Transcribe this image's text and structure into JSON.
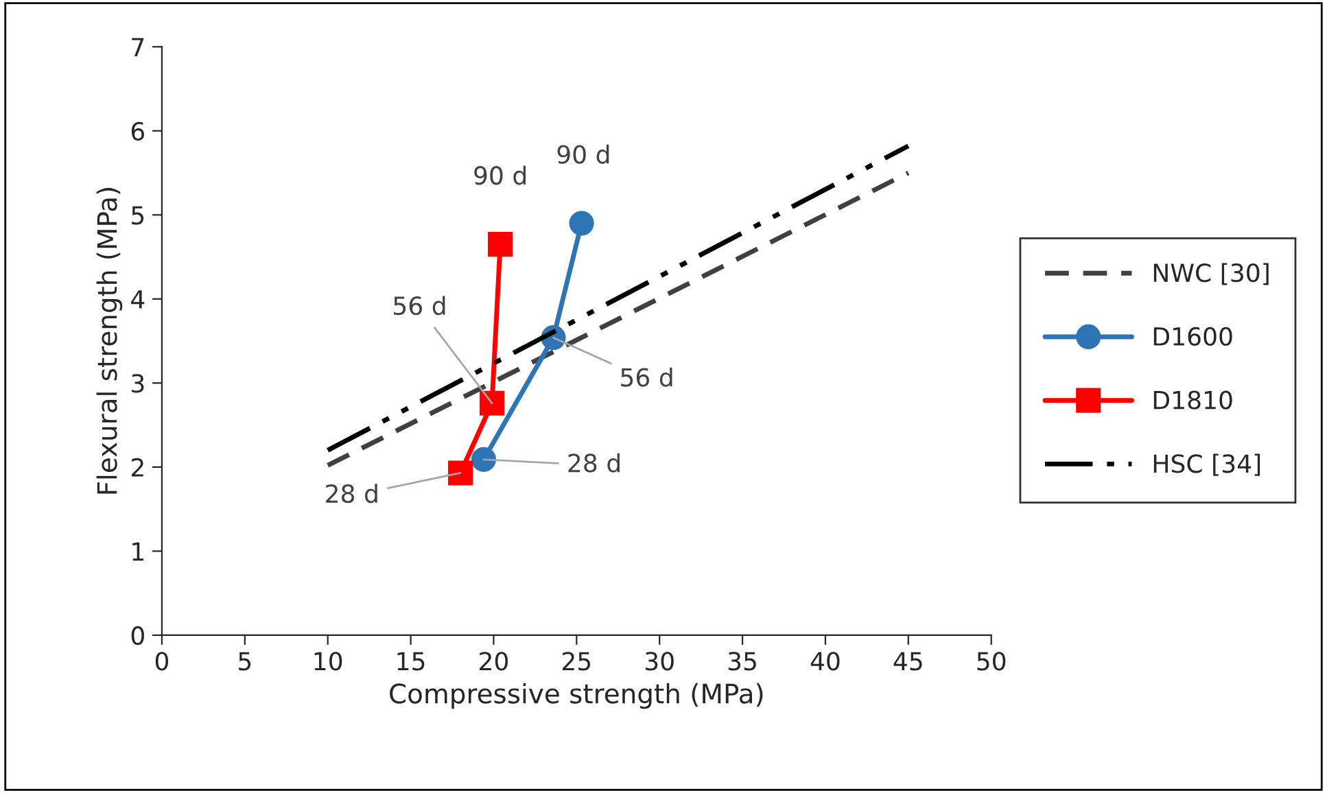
{
  "chart_data": {
    "type": "line",
    "xlabel": "Compressive strength (MPa)",
    "ylabel": "Flexural strength (MPa)",
    "xlim": [
      0,
      50
    ],
    "ylim": [
      0,
      7
    ],
    "xticks": [
      0,
      5,
      10,
      15,
      20,
      25,
      30,
      35,
      40,
      45,
      50
    ],
    "yticks": [
      0,
      1,
      2,
      3,
      4,
      5,
      6,
      7
    ],
    "grid": false,
    "legend": "right",
    "series": [
      {
        "name": "NWC [30]",
        "color": "#404040",
        "line_style": "dashed",
        "marker": "none",
        "x": [
          10,
          45
        ],
        "values": [
          2.02,
          5.5
        ]
      },
      {
        "name": "D1600",
        "color": "#2e75b6",
        "line_style": "solid",
        "marker": "circle",
        "x": [
          19.4,
          23.6,
          25.3
        ],
        "values": [
          2.09,
          3.54,
          4.9
        ]
      },
      {
        "name": "D1810",
        "color": "#ff0000",
        "line_style": "solid",
        "marker": "square",
        "x": [
          18.0,
          19.9,
          20.4
        ],
        "values": [
          1.93,
          2.76,
          4.65
        ]
      },
      {
        "name": "HSC [34]",
        "color": "#000000",
        "line_style": "dashdotdot",
        "marker": "none",
        "x": [
          10,
          45
        ],
        "values": [
          2.2,
          5.82
        ]
      }
    ],
    "annotations": [
      {
        "text": "90 d",
        "x": 20.4,
        "y": 4.65
      },
      {
        "text": "90 d",
        "x": 25.3,
        "y": 4.9
      },
      {
        "text": "56 d",
        "x": 23.6,
        "y": 3.54
      },
      {
        "text": "56 d",
        "x": 19.9,
        "y": 2.76
      },
      {
        "text": "28 d",
        "x": 19.4,
        "y": 2.09
      },
      {
        "text": "28 d",
        "x": 18.0,
        "y": 1.93
      }
    ]
  }
}
